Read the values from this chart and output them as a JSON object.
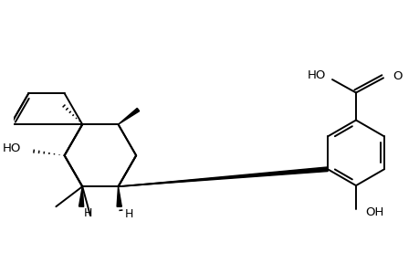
{
  "background_color": "#ffffff",
  "line_color": "#000000",
  "line_width": 1.4,
  "fig_width": 4.6,
  "fig_height": 3.0,
  "dpi": 100,
  "xlim": [
    -3.5,
    4.2
  ],
  "ylim": [
    -2.0,
    2.2
  ]
}
